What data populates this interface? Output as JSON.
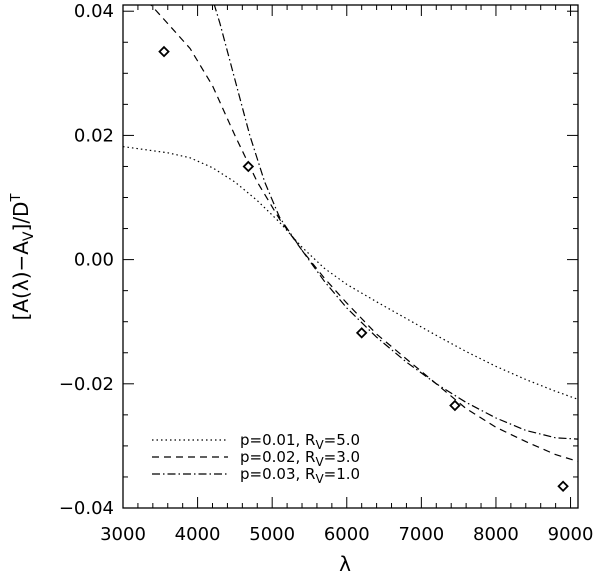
{
  "chart_data": {
    "type": "line",
    "title": "",
    "xlabel": "λ",
    "ylabel": {
      "main": "[A(λ)−A",
      "sub1": "V",
      "mid": "]/D",
      "sup": "T"
    },
    "xlim": [
      3000,
      9100
    ],
    "ylim": [
      -0.04,
      0.041
    ],
    "x_ticks": [
      3000,
      4000,
      5000,
      6000,
      7000,
      8000,
      9000
    ],
    "x_tick_labels": [
      "3000",
      "4000",
      "5000",
      "6000",
      "7000",
      "8000",
      "9000"
    ],
    "y_ticks": [
      -0.04,
      -0.02,
      0.0,
      0.02,
      0.04
    ],
    "y_tick_labels": [
      "−0.04",
      "−0.02",
      "0.00",
      "0.02",
      "0.04"
    ],
    "grid": false,
    "legend_position": "bottom-left",
    "series": [
      {
        "name": "p=0.01, R",
        "name_sub": "V",
        "name_tail": "=5.0",
        "style": "dotted",
        "x": [
          3000,
          3300,
          3600,
          3900,
          4200,
          4500,
          4800,
          5100,
          5400,
          5700,
          6000,
          6400,
          6800,
          7200,
          7600,
          8000,
          8400,
          8800,
          9100
        ],
        "y": [
          0.0182,
          0.0177,
          0.0172,
          0.0164,
          0.0148,
          0.0125,
          0.0095,
          0.006,
          0.002,
          -0.0014,
          -0.004,
          -0.0068,
          -0.0095,
          -0.0122,
          -0.0148,
          -0.0172,
          -0.0193,
          -0.0212,
          -0.0225
        ]
      },
      {
        "name": "p=0.02, R",
        "name_sub": "V",
        "name_tail": "=3.0",
        "style": "dashed",
        "x": [
          3000,
          3300,
          3600,
          3900,
          4200,
          4500,
          4800,
          5100,
          5400,
          5700,
          6000,
          6400,
          6800,
          7200,
          7600,
          8000,
          8400,
          8800,
          9100
        ],
        "y": [
          0.046,
          0.042,
          0.038,
          0.034,
          0.028,
          0.02,
          0.0125,
          0.0065,
          0.0015,
          -0.003,
          -0.007,
          -0.012,
          -0.016,
          -0.02,
          -0.024,
          -0.027,
          -0.0293,
          -0.0314,
          -0.0325
        ]
      },
      {
        "name": "p=0.03, R",
        "name_sub": "V",
        "name_tail": "=1.0",
        "style": "dashdot",
        "x": [
          4100,
          4300,
          4500,
          4700,
          4900,
          5100,
          5400,
          5700,
          6000,
          6400,
          6800,
          7200,
          7600,
          8000,
          8400,
          8800,
          9100
        ],
        "y": [
          0.046,
          0.038,
          0.029,
          0.02,
          0.0125,
          0.0068,
          0.0015,
          -0.0035,
          -0.0078,
          -0.0125,
          -0.0165,
          -0.02,
          -0.023,
          -0.0255,
          -0.0275,
          -0.0287,
          -0.0289
        ]
      }
    ],
    "points": {
      "marker": "diamond",
      "x": [
        3550,
        4680,
        6200,
        7450,
        8900
      ],
      "y": [
        0.0335,
        0.015,
        -0.0118,
        -0.0235,
        -0.0365
      ]
    },
    "colors": {
      "line": "#000000",
      "background": "#ffffff"
    }
  }
}
